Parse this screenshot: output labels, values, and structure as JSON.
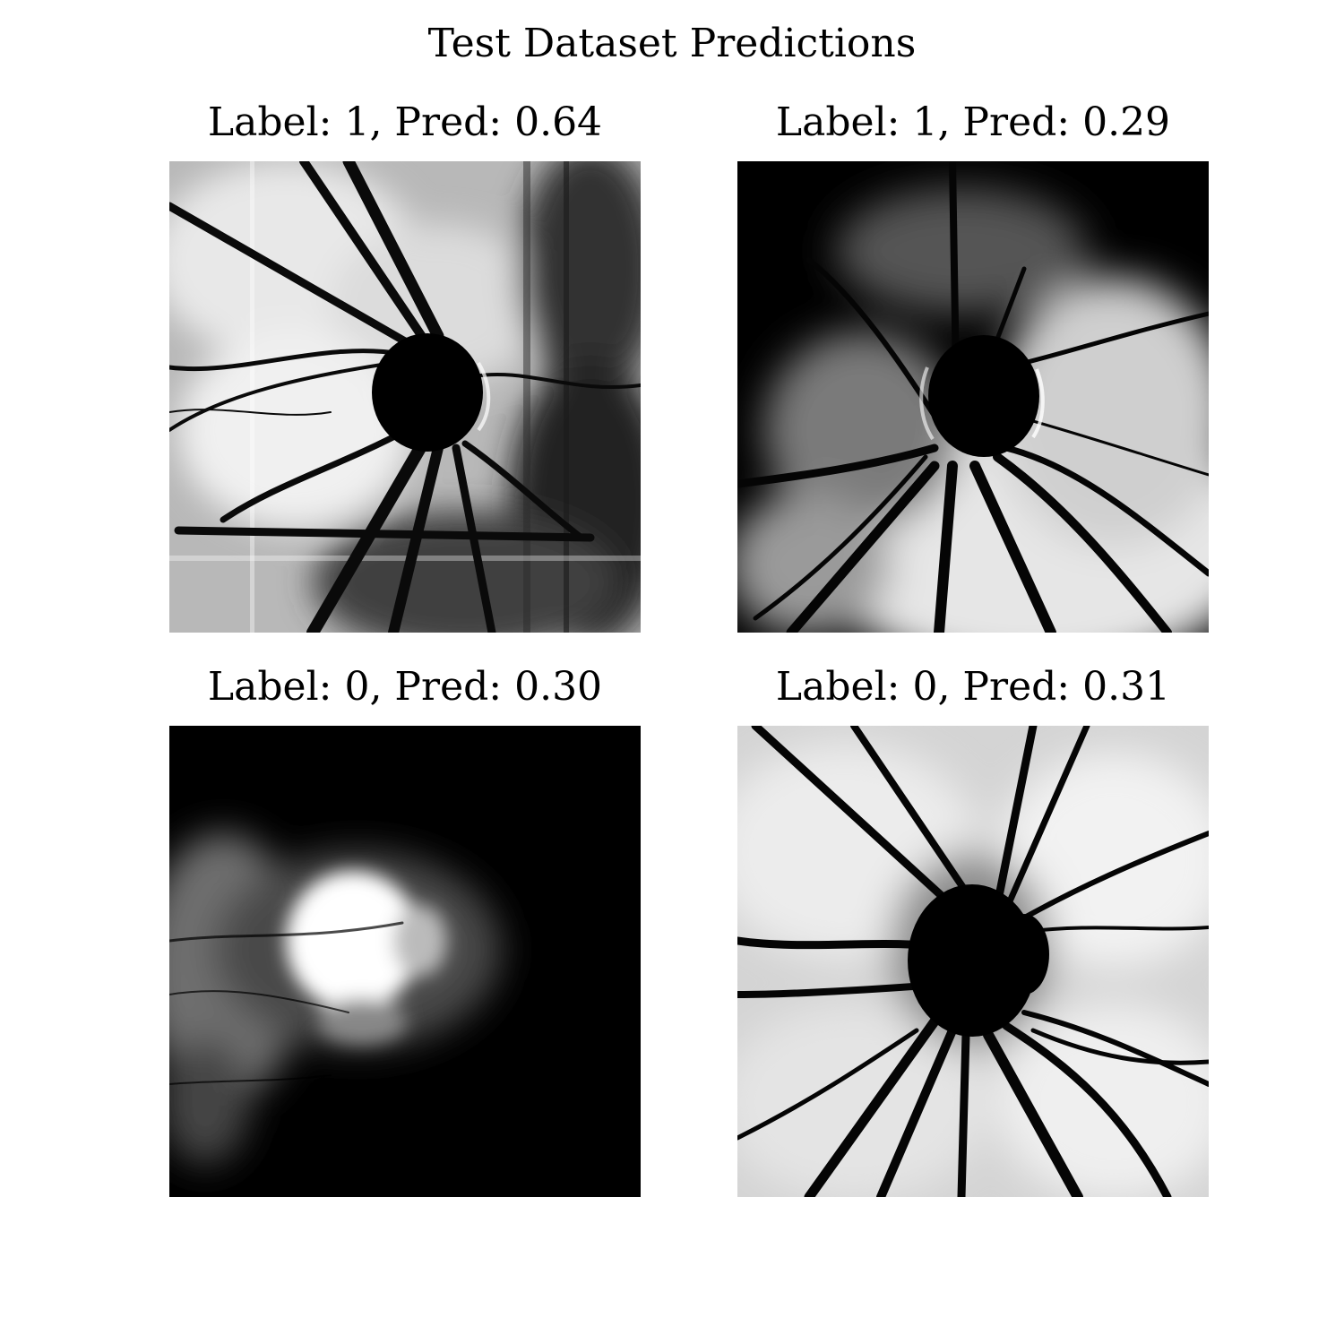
{
  "figure": {
    "title": "Test Dataset Predictions",
    "panels": [
      {
        "title": "Label: 1, Pred: 0.64",
        "image": "fundus-optic-disc-dark-disc"
      },
      {
        "title": "Label: 1, Pred: 0.29",
        "image": "fundus-optic-disc-dark-top"
      },
      {
        "title": "Label: 0, Pred: 0.30",
        "image": "fundus-bright-disc-dark-background"
      },
      {
        "title": "Label: 0, Pred: 0.31",
        "image": "fundus-optic-disc-bright-background"
      }
    ]
  }
}
